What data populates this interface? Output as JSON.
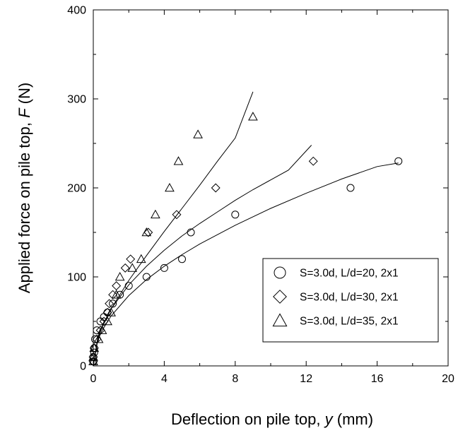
{
  "chart_data": {
    "type": "scatter",
    "xlabel": {
      "prefix": "Deflection on pile top, ",
      "var": "y",
      "suffix": " (mm)"
    },
    "ylabel": {
      "prefix": "Applied force on pile top, ",
      "var": "F",
      "suffix": " (N)"
    },
    "xlim": [
      0,
      20
    ],
    "ylim": [
      0,
      400
    ],
    "xticks": [
      "0",
      "4",
      "8",
      "12",
      "16",
      "20"
    ],
    "yticks": [
      "0",
      "100",
      "200",
      "300",
      "400"
    ],
    "grid": false,
    "legend_position": "bottom-right",
    "series": [
      {
        "name": "S=3.0d, L/d=20, 2x1",
        "marker": "circle",
        "points": [
          [
            0,
            5
          ],
          [
            0,
            10
          ],
          [
            0.05,
            15
          ],
          [
            0.05,
            20
          ],
          [
            0.1,
            30
          ],
          [
            0.2,
            40
          ],
          [
            0.4,
            50
          ],
          [
            0.6,
            55
          ],
          [
            0.8,
            60
          ],
          [
            1.1,
            70
          ],
          [
            1.5,
            80
          ],
          [
            2,
            90
          ],
          [
            3,
            100
          ],
          [
            4,
            110
          ],
          [
            5,
            120
          ],
          [
            5.5,
            150
          ],
          [
            8,
            170
          ],
          [
            14.5,
            200
          ],
          [
            17.2,
            230
          ]
        ],
        "fit": [
          [
            0,
            0
          ],
          [
            0.25,
            29
          ],
          [
            0.5,
            40
          ],
          [
            1,
            56
          ],
          [
            2,
            79
          ],
          [
            3,
            97
          ],
          [
            4,
            112
          ],
          [
            5,
            125
          ],
          [
            6,
            137
          ],
          [
            8,
            158
          ],
          [
            10,
            177
          ],
          [
            12,
            194
          ],
          [
            14,
            210
          ],
          [
            16,
            224
          ],
          [
            17.2,
            228
          ]
        ]
      },
      {
        "name": "S=3.0d, L/d=30, 2x1",
        "marker": "diamond",
        "points": [
          [
            0,
            5
          ],
          [
            0,
            10
          ],
          [
            0.05,
            20
          ],
          [
            0.2,
            30
          ],
          [
            0.4,
            40
          ],
          [
            0.6,
            50
          ],
          [
            0.8,
            60
          ],
          [
            0.9,
            70
          ],
          [
            1.1,
            80
          ],
          [
            1.3,
            90
          ],
          [
            1.8,
            110
          ],
          [
            2.1,
            120
          ],
          [
            3.1,
            150
          ],
          [
            4.7,
            170
          ],
          [
            6.9,
            200
          ],
          [
            12.4,
            230
          ]
        ],
        "fit": [
          [
            0,
            0
          ],
          [
            0.25,
            32
          ],
          [
            0.5,
            45
          ],
          [
            1,
            64
          ],
          [
            2,
            91
          ],
          [
            3,
            112
          ],
          [
            4,
            130
          ],
          [
            5,
            146
          ],
          [
            6,
            160
          ],
          [
            7,
            173
          ],
          [
            8,
            186
          ],
          [
            9,
            198
          ],
          [
            10,
            209
          ],
          [
            11,
            220
          ],
          [
            12.3,
            248
          ]
        ]
      },
      {
        "name": "S=3.0d, L/d=35, 2x1",
        "marker": "triangle",
        "points": [
          [
            0,
            5
          ],
          [
            0,
            10
          ],
          [
            0.05,
            20
          ],
          [
            0.3,
            30
          ],
          [
            0.5,
            40
          ],
          [
            0.8,
            50
          ],
          [
            1.0,
            60
          ],
          [
            1.3,
            80
          ],
          [
            1.5,
            100
          ],
          [
            2.2,
            110
          ],
          [
            2.7,
            120
          ],
          [
            3.0,
            150
          ],
          [
            3.5,
            170
          ],
          [
            4.3,
            200
          ],
          [
            4.8,
            230
          ],
          [
            5.9,
            260
          ],
          [
            9.0,
            280
          ]
        ],
        "fit": [
          [
            0,
            0
          ],
          [
            0.25,
            30
          ],
          [
            0.5,
            44
          ],
          [
            1,
            64
          ],
          [
            2,
            96
          ],
          [
            3,
            124
          ],
          [
            4,
            151
          ],
          [
            5,
            177
          ],
          [
            6,
            203
          ],
          [
            7,
            230
          ],
          [
            8,
            256
          ],
          [
            9,
            308
          ]
        ]
      }
    ]
  }
}
